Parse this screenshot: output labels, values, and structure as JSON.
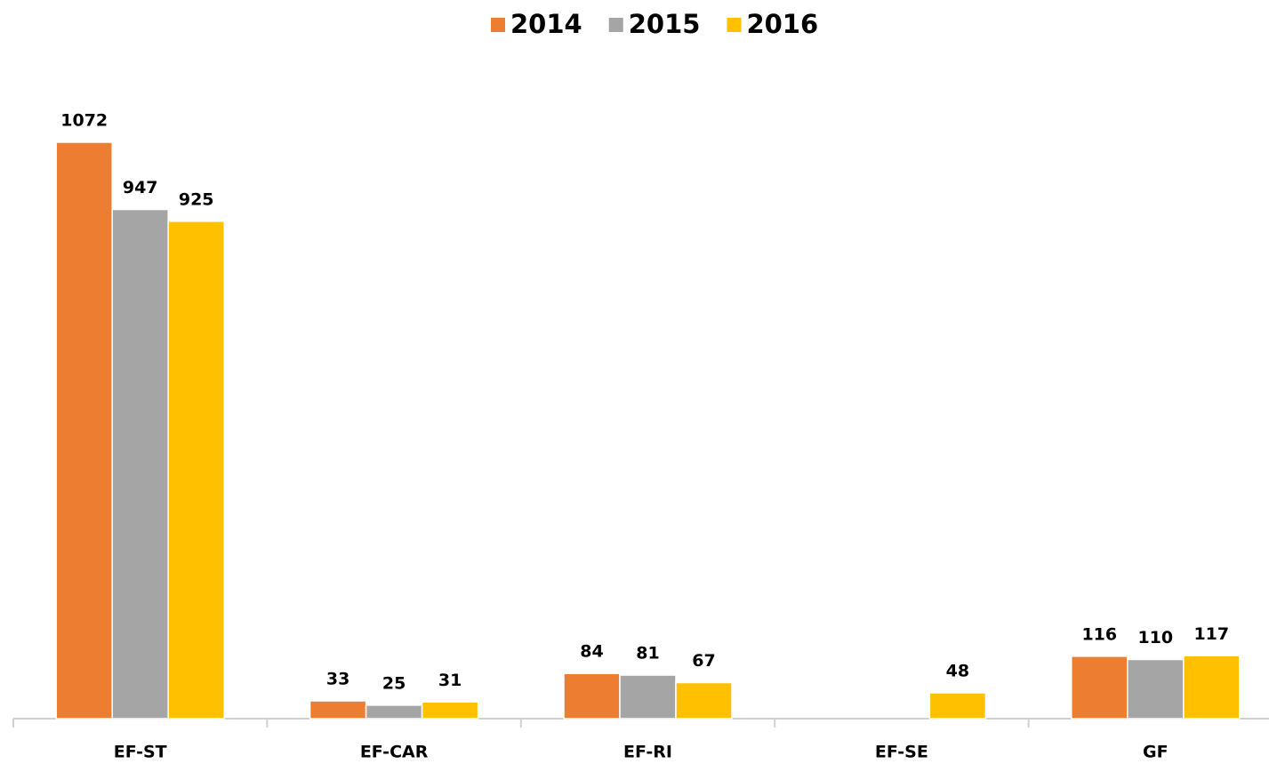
{
  "chart_data": {
    "type": "bar",
    "categories": [
      "EF-ST",
      "EF-CAR",
      "EF-RI",
      "EF-SE",
      "GF"
    ],
    "series": [
      {
        "name": "2014",
        "color": "#ed7d31",
        "values": [
          1072,
          33,
          84,
          null,
          116
        ]
      },
      {
        "name": "2015",
        "color": "#a5a5a5",
        "values": [
          947,
          25,
          81,
          null,
          110
        ]
      },
      {
        "name": "2016",
        "color": "#ffc000",
        "values": [
          925,
          31,
          67,
          48,
          117
        ]
      }
    ],
    "ylim": [
      0,
      1100
    ],
    "legend": "top"
  }
}
